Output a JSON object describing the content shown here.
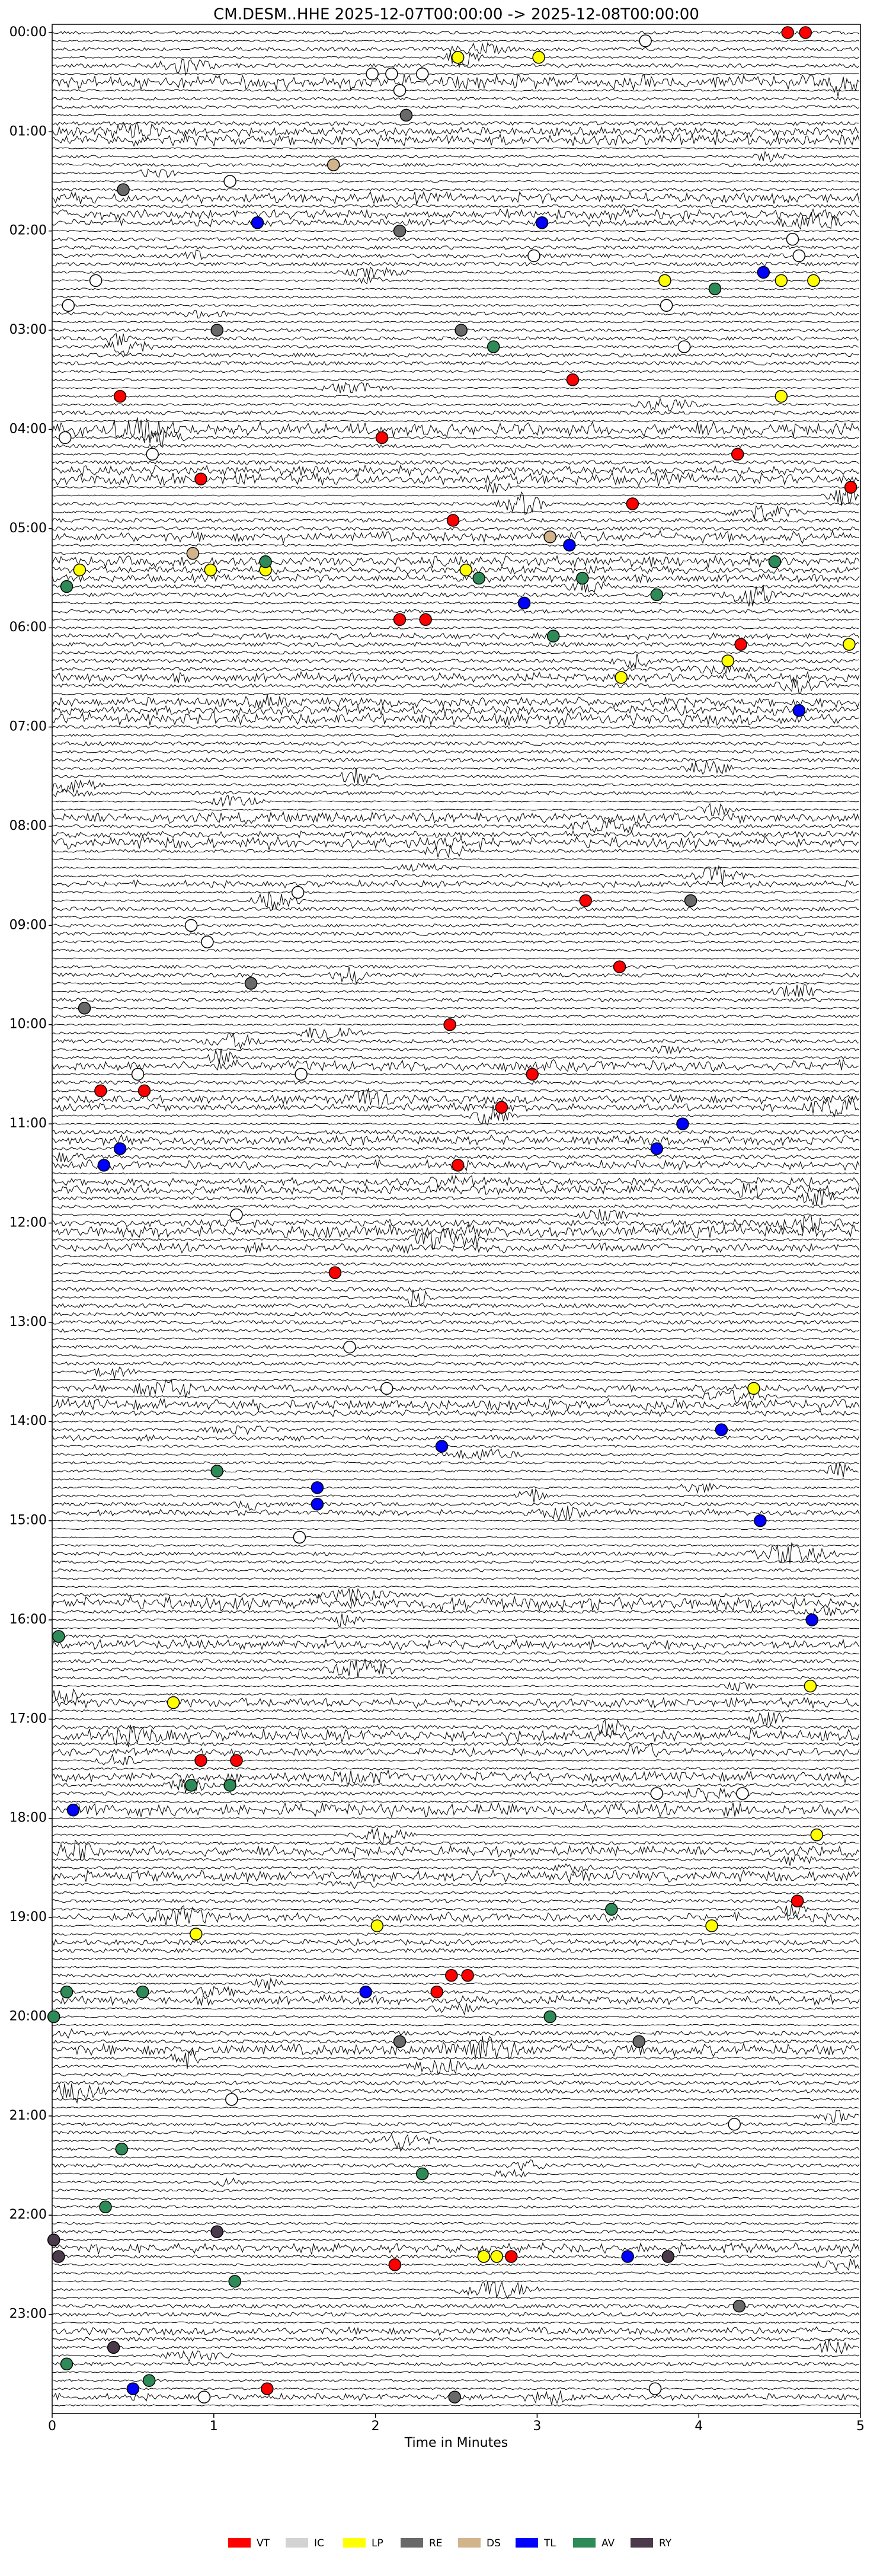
{
  "chart_data": {
    "type": "helicorder",
    "title": "CM.DESM..HHE  2025-12-07T00:00:00 -> 2025-12-08T00:00:00",
    "xlabel": "Time in Minutes",
    "xlim": [
      0,
      5
    ],
    "xticks": [
      0,
      1,
      2,
      3,
      4,
      5
    ],
    "ylim": [
      1440,
      -5
    ],
    "yticks": [
      {
        "value": 0,
        "label": "00:00"
      },
      {
        "value": 60,
        "label": "01:00"
      },
      {
        "value": 120,
        "label": "02:00"
      },
      {
        "value": 180,
        "label": "03:00"
      },
      {
        "value": 240,
        "label": "04:00"
      },
      {
        "value": 300,
        "label": "05:00"
      },
      {
        "value": 360,
        "label": "06:00"
      },
      {
        "value": 420,
        "label": "07:00"
      },
      {
        "value": 480,
        "label": "08:00"
      },
      {
        "value": 540,
        "label": "09:00"
      },
      {
        "value": 600,
        "label": "10:00"
      },
      {
        "value": 660,
        "label": "11:00"
      },
      {
        "value": 720,
        "label": "12:00"
      },
      {
        "value": 780,
        "label": "13:00"
      },
      {
        "value": 840,
        "label": "14:00"
      },
      {
        "value": 900,
        "label": "15:00"
      },
      {
        "value": 960,
        "label": "16:00"
      },
      {
        "value": 1020,
        "label": "17:00"
      },
      {
        "value": 1080,
        "label": "18:00"
      },
      {
        "value": 1140,
        "label": "19:00"
      },
      {
        "value": 1200,
        "label": "20:00"
      },
      {
        "value": 1260,
        "label": "21:00"
      },
      {
        "value": 1320,
        "label": "22:00"
      },
      {
        "value": 1380,
        "label": "23:00"
      }
    ],
    "trace_interval": 5,
    "series": [
      {
        "name": "VT",
        "color": "#ff0000",
        "x": [
          4.55,
          4.66,
          3.22,
          0.42,
          2.04,
          0.92,
          4.24,
          4.94,
          3.59,
          2.48,
          2.15,
          2.31,
          4.26,
          3.3,
          3.51,
          2.46,
          2.97,
          0.3,
          0.57,
          2.78,
          2.51,
          1.75,
          0.92,
          1.14,
          4.61,
          2.38,
          2.47,
          2.57,
          2.12,
          2.84,
          1.33
        ],
        "values": [
          0,
          0,
          210,
          220,
          245,
          270,
          255,
          275,
          285,
          295,
          355,
          355,
          370,
          525,
          565,
          600,
          630,
          640,
          640,
          650,
          685,
          750,
          1045,
          1045,
          1130,
          1185,
          1175,
          1175,
          1350,
          1345,
          1425
        ]
      },
      {
        "name": "IC",
        "color": "#d3d3d3",
        "x": [],
        "values": []
      },
      {
        "name": "LP",
        "color": "#ffff00",
        "x": [
          2.51,
          3.01,
          3.79,
          4.51,
          4.71,
          4.51,
          2.56,
          0.17,
          0.98,
          1.32,
          4.93,
          3.52,
          4.18,
          4.34,
          4.69,
          0.75,
          4.73,
          0.89,
          2.01,
          4.08,
          2.67,
          2.75
        ],
        "values": [
          15,
          15,
          150,
          150,
          150,
          220,
          325,
          325,
          325,
          325,
          370,
          390,
          380,
          820,
          1000,
          1010,
          1090,
          1150,
          1145,
          1145,
          1345,
          1345
        ]
      },
      {
        "name": "RE",
        "color": "#696969",
        "x": [
          2.19,
          0.44,
          2.15,
          1.02,
          2.53,
          0.2,
          1.23,
          3.95,
          2.15,
          3.63,
          2.49,
          4.25
        ],
        "values": [
          50,
          95,
          120,
          180,
          180,
          590,
          575,
          525,
          1215,
          1215,
          1430,
          1375
        ]
      },
      {
        "name": "DS",
        "color": "#d2b48c",
        "x": [
          1.74,
          0.87,
          3.08
        ],
        "values": [
          80,
          315,
          305
        ]
      },
      {
        "name": "TL",
        "color": "#0000ff",
        "x": [
          1.27,
          3.03,
          4.4,
          3.2,
          2.92,
          4.62,
          3.9,
          0.42,
          0.32,
          3.74,
          2.41,
          1.64,
          1.64,
          4.14,
          4.38,
          4.7,
          0.13,
          1.94,
          3.56,
          0.5
        ],
        "values": [
          115,
          115,
          145,
          310,
          345,
          410,
          660,
          675,
          685,
          675,
          855,
          880,
          890,
          845,
          900,
          960,
          1075,
          1185,
          1345,
          1425
        ]
      },
      {
        "name": "AV",
        "color": "#2e8b57",
        "x": [
          2.73,
          4.1,
          1.32,
          2.64,
          3.28,
          3.74,
          3.1,
          4.47,
          0.09,
          1.02,
          0.04,
          1.1,
          0.86,
          3.46,
          0.09,
          0.56,
          0.01,
          3.08,
          0.43,
          2.29,
          0.33,
          1.13,
          0.09,
          0.6
        ],
        "values": [
          190,
          155,
          320,
          330,
          330,
          340,
          365,
          320,
          335,
          870,
          970,
          1060,
          1060,
          1135,
          1185,
          1185,
          1200,
          1200,
          1280,
          1295,
          1315,
          1360,
          1410,
          1420
        ]
      },
      {
        "name": "RY",
        "color": "#4b3a4b",
        "x": [
          0.01,
          1.02,
          0.04,
          0.38,
          3.81
        ],
        "values": [
          1335,
          1330,
          1345,
          1400,
          1345
        ]
      },
      {
        "color": "#ffffff",
        "x": [
          3.67,
          1.98,
          2.1,
          2.29,
          2.15,
          1.1,
          2.98,
          4.58,
          4.62,
          0.27,
          3.8,
          0.1,
          3.91,
          0.08,
          0.62,
          1.52,
          0.86,
          0.96,
          0.53,
          1.54,
          1.14,
          1.84,
          2.07,
          1.53,
          3.74,
          4.27,
          1.11,
          4.22,
          0.94,
          3.73
        ],
        "values": [
          5,
          25,
          25,
          25,
          35,
          90,
          135,
          125,
          135,
          150,
          165,
          165,
          190,
          245,
          255,
          520,
          540,
          550,
          630,
          630,
          715,
          795,
          820,
          910,
          1065,
          1065,
          1250,
          1265,
          1430,
          1425
        ]
      }
    ]
  }
}
